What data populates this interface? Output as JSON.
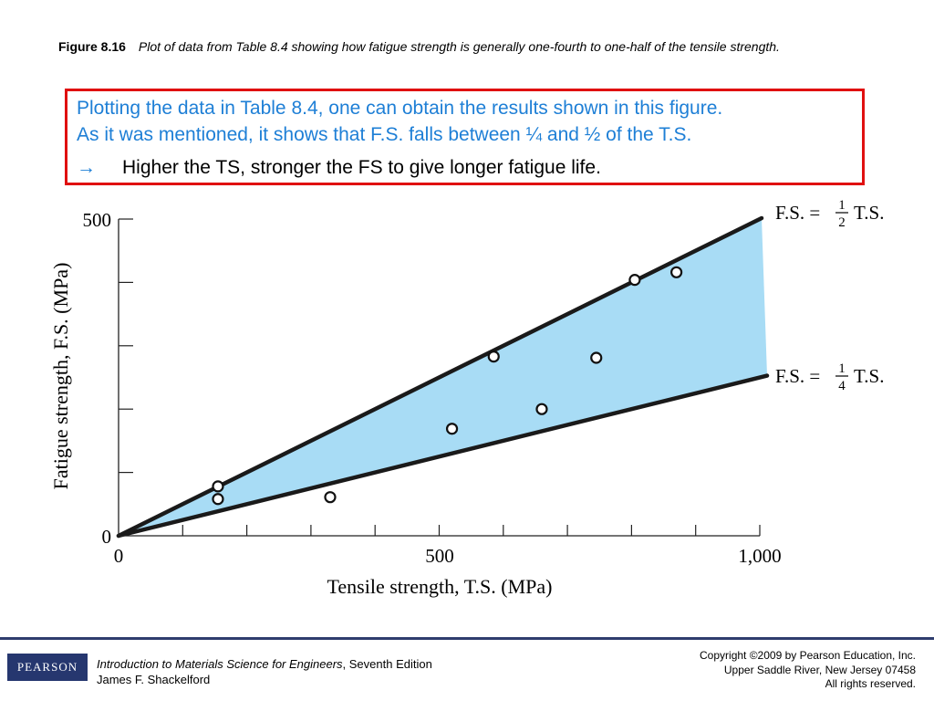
{
  "caption": {
    "figure_number": "Figure 8.16",
    "text": "Plot of data from Table 8.4 showing how fatigue strength is generally one-fourth to one-half of the tensile strength."
  },
  "callout": {
    "line1": "Plotting the data in Table 8.4, one can obtain the results shown in this figure.",
    "line2": "As it was mentioned, it shows that F.S. falls between ¼ and ½ of the T.S.",
    "arrow": "→",
    "bullet": "Higher the TS, stronger the FS to give longer fatigue life."
  },
  "chart_data": {
    "type": "scatter",
    "xlabel": "Tensile strength, T.S. (MPa)",
    "ylabel": "Fatigue strength, F.S. (MPa)",
    "xlim": [
      0,
      1000
    ],
    "ylim": [
      0,
      500
    ],
    "x_tick_labels": [
      "0",
      "500",
      "1,000"
    ],
    "y_tick_labels": [
      "0",
      "500"
    ],
    "grid": false,
    "points": [
      {
        "x": 155,
        "y": 78
      },
      {
        "x": 155,
        "y": 58
      },
      {
        "x": 330,
        "y": 61
      },
      {
        "x": 520,
        "y": 169
      },
      {
        "x": 585,
        "y": 283
      },
      {
        "x": 660,
        "y": 200
      },
      {
        "x": 745,
        "y": 281
      },
      {
        "x": 805,
        "y": 404
      },
      {
        "x": 870,
        "y": 416
      }
    ],
    "lines": [
      {
        "label": "F.S. =",
        "fraction_num": "1",
        "fraction_den": "2",
        "suffix": "T.S.",
        "slope": 0.5
      },
      {
        "label": "F.S. =",
        "fraction_num": "1",
        "fraction_den": "4",
        "suffix": "T.S.",
        "slope": 0.25
      }
    ],
    "band_color": "#a8dcf5",
    "line_color": "#1a1a1a"
  },
  "footer": {
    "logo": "PEARSON",
    "book_title": "Introduction to Materials Science for Engineers",
    "book_edition": ", Seventh Edition",
    "author": "James F. Shackelford",
    "copyright_1": "Copyright ©2009 by Pearson Education, Inc.",
    "copyright_2": "Upper Saddle River, New Jersey 07458",
    "copyright_3": "All rights reserved."
  }
}
